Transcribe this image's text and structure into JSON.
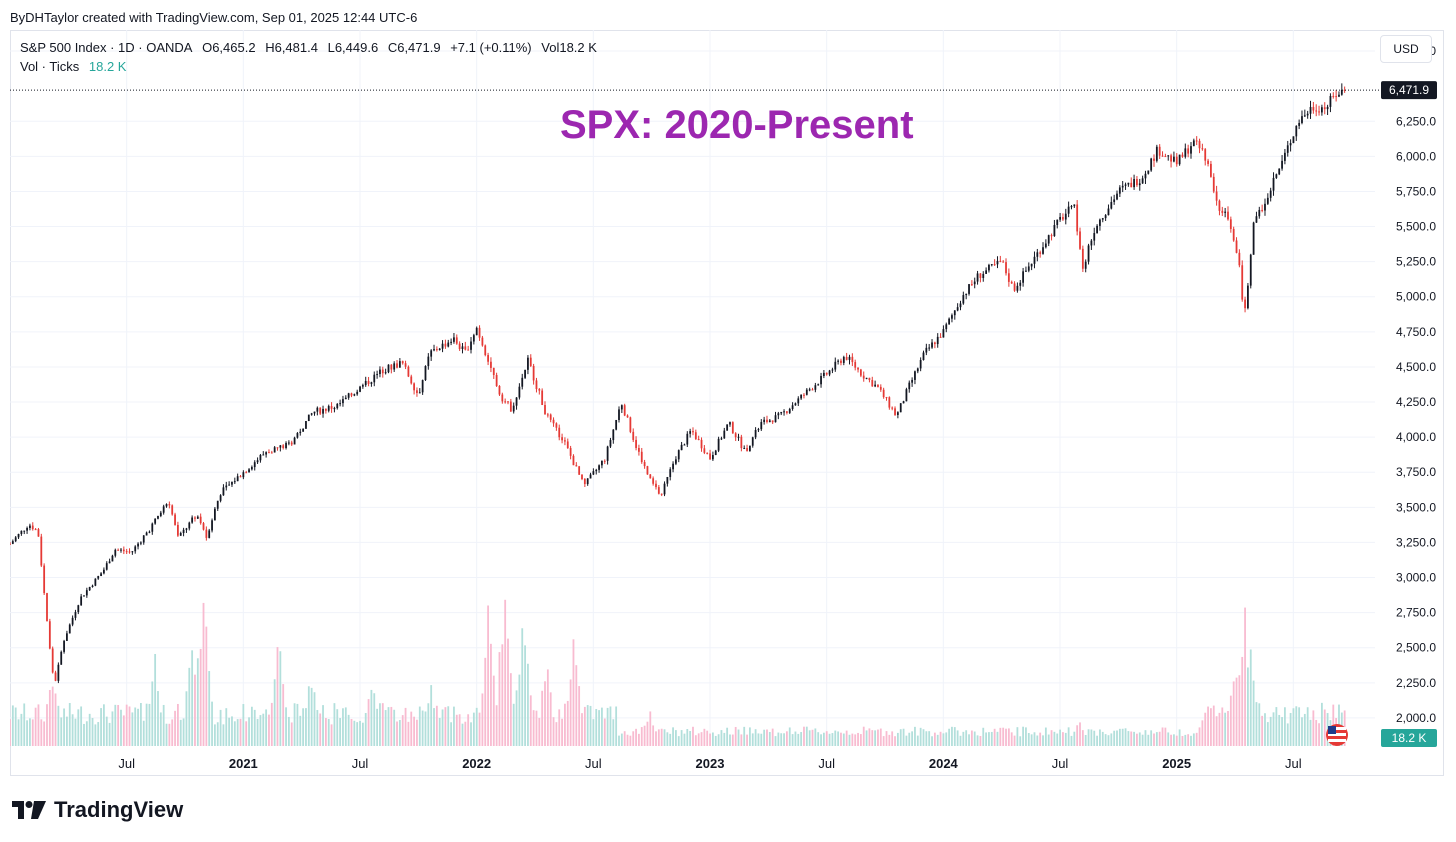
{
  "byline": "ByDHTaylor created with TradingView.com, Sep 01, 2025 12:44 UTC-6",
  "legend": {
    "symbol": "S&P 500 Index · 1D · OANDA",
    "open": "O6,465.2",
    "high": "H6,481.4",
    "low": "L6,449.6",
    "close": "C6,471.9",
    "change": "+7.1 (+0.11%)",
    "volume": "Vol18.2 K",
    "vol_label": "Vol · Ticks",
    "vol_value": "18.2 K"
  },
  "currency": "USD",
  "brand": "TradingView",
  "colors": {
    "up": "#131722",
    "down": "#e53935",
    "vol_up": "#b2dfdb",
    "vol_down": "#f8bbd0",
    "title": "#9c27b0",
    "vol_badge": "#26a69a"
  },
  "chart_data": {
    "type": "candlestick",
    "title": "SPX: 2020-Present",
    "last_price": "6,471.9",
    "volume_badge": "18.2 K",
    "y_ticks": [
      "6,750.0",
      "6,250.0",
      "6,000.0",
      "5,750.0",
      "5,500.0",
      "5,250.0",
      "5,000.0",
      "4,750.0",
      "4,500.0",
      "4,250.0",
      "4,000.0",
      "3,750.0",
      "3,500.0",
      "3,250.0",
      "3,000.0",
      "2,750.0",
      "2,500.0",
      "2,250.0",
      "2,000.0"
    ],
    "ylim": [
      1800,
      6900
    ],
    "x_ticks": [
      {
        "label": "Jul",
        "t": 2020.5,
        "bold": false
      },
      {
        "label": "2021",
        "t": 2021.0,
        "bold": true
      },
      {
        "label": "Jul",
        "t": 2021.5,
        "bold": false
      },
      {
        "label": "2022",
        "t": 2022.0,
        "bold": true
      },
      {
        "label": "Jul",
        "t": 2022.5,
        "bold": false
      },
      {
        "label": "2023",
        "t": 2023.0,
        "bold": true
      },
      {
        "label": "Jul",
        "t": 2023.5,
        "bold": false
      },
      {
        "label": "2024",
        "t": 2024.0,
        "bold": true
      },
      {
        "label": "Jul",
        "t": 2024.5,
        "bold": false
      },
      {
        "label": "2025",
        "t": 2025.0,
        "bold": true
      },
      {
        "label": "Jul",
        "t": 2025.5,
        "bold": false
      }
    ],
    "xlim": [
      2020.0,
      2025.85
    ],
    "price_path": [
      [
        2020.0,
        3240
      ],
      [
        2020.08,
        3380
      ],
      [
        2020.12,
        3330
      ],
      [
        2020.17,
        2500
      ],
      [
        2020.19,
        2230
      ],
      [
        2020.23,
        2550
      ],
      [
        2020.3,
        2850
      ],
      [
        2020.4,
        3050
      ],
      [
        2020.45,
        3200
      ],
      [
        2020.52,
        3180
      ],
      [
        2020.6,
        3350
      ],
      [
        2020.68,
        3550
      ],
      [
        2020.72,
        3280
      ],
      [
        2020.8,
        3450
      ],
      [
        2020.84,
        3280
      ],
      [
        2020.9,
        3600
      ],
      [
        2021.0,
        3750
      ],
      [
        2021.1,
        3900
      ],
      [
        2021.2,
        3950
      ],
      [
        2021.3,
        4180
      ],
      [
        2021.4,
        4220
      ],
      [
        2021.5,
        4350
      ],
      [
        2021.6,
        4480
      ],
      [
        2021.68,
        4530
      ],
      [
        2021.75,
        4300
      ],
      [
        2021.8,
        4600
      ],
      [
        2021.9,
        4700
      ],
      [
        2021.95,
        4600
      ],
      [
        2022.0,
        4780
      ],
      [
        2022.05,
        4550
      ],
      [
        2022.1,
        4300
      ],
      [
        2022.15,
        4200
      ],
      [
        2022.22,
        4550
      ],
      [
        2022.3,
        4150
      ],
      [
        2022.38,
        3950
      ],
      [
        2022.46,
        3650
      ],
      [
        2022.55,
        3850
      ],
      [
        2022.62,
        4250
      ],
      [
        2022.68,
        3950
      ],
      [
        2022.74,
        3700
      ],
      [
        2022.79,
        3580
      ],
      [
        2022.85,
        3850
      ],
      [
        2022.92,
        4050
      ],
      [
        2023.0,
        3850
      ],
      [
        2023.08,
        4100
      ],
      [
        2023.15,
        3900
      ],
      [
        2023.22,
        4100
      ],
      [
        2023.3,
        4150
      ],
      [
        2023.4,
        4300
      ],
      [
        2023.5,
        4450
      ],
      [
        2023.58,
        4580
      ],
      [
        2023.65,
        4450
      ],
      [
        2023.72,
        4350
      ],
      [
        2023.8,
        4150
      ],
      [
        2023.85,
        4350
      ],
      [
        2023.92,
        4600
      ],
      [
        2024.0,
        4750
      ],
      [
        2024.08,
        5000
      ],
      [
        2024.15,
        5150
      ],
      [
        2024.25,
        5250
      ],
      [
        2024.3,
        5050
      ],
      [
        2024.4,
        5300
      ],
      [
        2024.5,
        5550
      ],
      [
        2024.56,
        5650
      ],
      [
        2024.6,
        5200
      ],
      [
        2024.65,
        5500
      ],
      [
        2024.75,
        5750
      ],
      [
        2024.85,
        5850
      ],
      [
        2024.92,
        6050
      ],
      [
        2025.0,
        5950
      ],
      [
        2025.07,
        6100
      ],
      [
        2025.12,
        6020
      ],
      [
        2025.18,
        5650
      ],
      [
        2025.22,
        5550
      ],
      [
        2025.27,
        5200
      ],
      [
        2025.29,
        4850
      ],
      [
        2025.33,
        5500
      ],
      [
        2025.38,
        5700
      ],
      [
        2025.45,
        5950
      ],
      [
        2025.52,
        6250
      ],
      [
        2025.58,
        6350
      ],
      [
        2025.64,
        6350
      ],
      [
        2025.68,
        6440
      ],
      [
        2025.72,
        6472
      ]
    ],
    "volume_spikes": [
      [
        2020.18,
        0.45
      ],
      [
        2020.62,
        0.55
      ],
      [
        2020.78,
        0.62
      ],
      [
        2020.83,
        1.0
      ],
      [
        2021.15,
        0.65
      ],
      [
        2021.29,
        0.47
      ],
      [
        2021.55,
        0.42
      ],
      [
        2021.8,
        0.38
      ],
      [
        2022.05,
        0.8
      ],
      [
        2022.12,
        0.95
      ],
      [
        2022.2,
        0.78
      ],
      [
        2022.3,
        0.55
      ],
      [
        2022.42,
        0.7
      ],
      [
        2022.74,
        0.5
      ],
      [
        2023.18,
        0.22
      ],
      [
        2024.58,
        0.38
      ],
      [
        2025.15,
        0.25
      ],
      [
        2025.25,
        0.5
      ],
      [
        2025.29,
        0.85
      ],
      [
        2025.32,
        0.58
      ]
    ],
    "volume_ylim": [
      0,
      1.0
    ]
  }
}
